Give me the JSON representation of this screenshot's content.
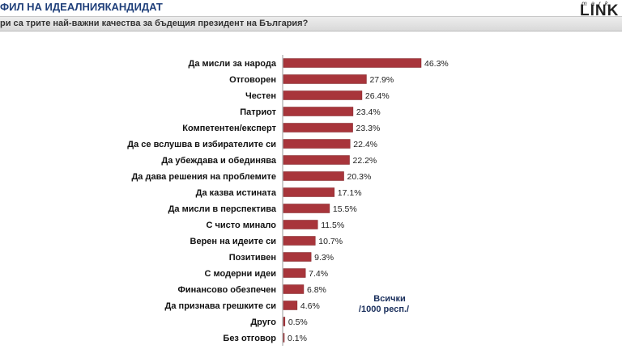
{
  "header": {
    "title": "ФИЛ НА ИДЕАЛНИЯ",
    "title_underlined": "КАНДИДАТ",
    "question": "ри са трите най-важни качества за бъдещия президент на България?"
  },
  "logo": {
    "top": "mark",
    "main": "LINK"
  },
  "note": {
    "line1": "Всички",
    "line2": "/1000 респ./"
  },
  "colors": {
    "bar": "#a8353b",
    "bar_edge": "#7f2227",
    "title": "#1f3f7a"
  },
  "chart_data": {
    "type": "bar",
    "orientation": "horizontal",
    "categories": [
      "Да мисли за народа",
      "Отговорен",
      "Честен",
      "Патриот",
      "Компетентен/експерт",
      "Да се вслушва в избирателите си",
      "Да убеждава и обединява",
      "Да дава решения на проблемите",
      "Да казва истината",
      "Да мисли в перспектива",
      "С чисто минало",
      "Верен на идеите си",
      "Позитивен",
      "С модерни идеи",
      "Финансово обезпечен",
      "Да признава грешките си",
      "Друго",
      "Без отговор"
    ],
    "values": [
      46.3,
      27.9,
      26.4,
      23.4,
      23.3,
      22.4,
      22.2,
      20.3,
      17.1,
      15.5,
      11.5,
      10.7,
      9.3,
      7.4,
      6.8,
      4.6,
      0.5,
      0.1
    ],
    "value_labels": [
      "46.3%",
      "27.9%",
      "26.4%",
      "23.4%",
      "23.3%",
      "22.4%",
      "22.2%",
      "20.3%",
      "17.1%",
      "15.5%",
      "11.5%",
      "10.7%",
      "9.3%",
      "7.4%",
      "6.8%",
      "4.6%",
      "0.5%",
      "0.1%"
    ],
    "xlim": [
      0,
      46.3
    ],
    "grid": false,
    "legend": "none"
  }
}
